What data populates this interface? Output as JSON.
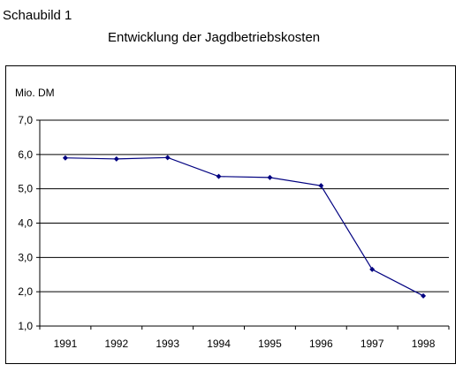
{
  "header": {
    "figure_label": "Schaubild 1",
    "title": "Entwicklung der Jagdbetriebskosten"
  },
  "chart_data": {
    "type": "line",
    "ylabel": "Mio. DM",
    "categories": [
      "1991",
      "1992",
      "1993",
      "1994",
      "1995",
      "1996",
      "1997",
      "1998"
    ],
    "values": [
      5.9,
      5.87,
      5.91,
      5.36,
      5.33,
      5.09,
      2.65,
      1.88
    ],
    "ylim": [
      1.0,
      7.0
    ],
    "y_ticks": [
      1.0,
      2.0,
      3.0,
      4.0,
      5.0,
      6.0,
      7.0
    ],
    "y_tick_labels": [
      "1,0",
      "2,0",
      "3,0",
      "4,0",
      "5,0",
      "6,0",
      "7,0"
    ],
    "grid": "horizontal",
    "legend": "none",
    "line_color": "#000080"
  }
}
